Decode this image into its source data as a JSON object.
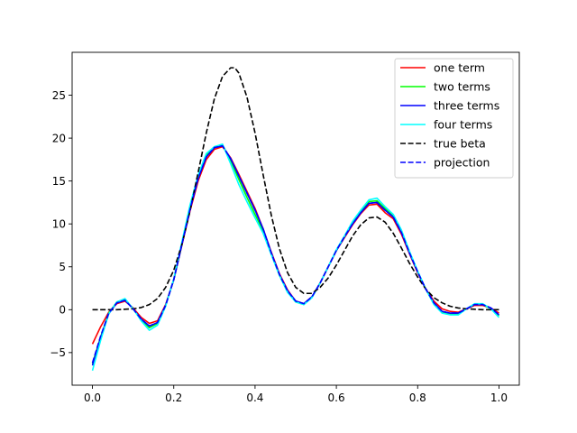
{
  "chart_data": {
    "type": "line",
    "title": "",
    "xlabel": "",
    "ylabel": "",
    "xlim": [
      -0.05,
      1.05
    ],
    "ylim": [
      -8.8,
      30.0
    ],
    "xticks": [
      0.0,
      0.2,
      0.4,
      0.6,
      0.8,
      1.0
    ],
    "xtick_labels": [
      "0.0",
      "0.2",
      "0.4",
      "0.6",
      "0.8",
      "1.0"
    ],
    "yticks": [
      -5,
      0,
      5,
      10,
      15,
      20,
      25
    ],
    "ytick_labels": [
      "−5",
      "0",
      "5",
      "10",
      "15",
      "20",
      "25"
    ],
    "grid": false,
    "legend_position": "top-right",
    "series": [
      {
        "name": "one term",
        "color": "#ff0000",
        "style": "solid",
        "x": [
          0.0,
          0.02,
          0.04,
          0.06,
          0.08,
          0.1,
          0.12,
          0.14,
          0.16,
          0.18,
          0.2,
          0.22,
          0.24,
          0.26,
          0.28,
          0.3,
          0.32,
          0.34,
          0.36,
          0.38,
          0.4,
          0.42,
          0.44,
          0.46,
          0.48,
          0.5,
          0.52,
          0.54,
          0.56,
          0.58,
          0.6,
          0.62,
          0.64,
          0.66,
          0.68,
          0.7,
          0.72,
          0.74,
          0.76,
          0.78,
          0.8,
          0.82,
          0.84,
          0.86,
          0.88,
          0.9,
          0.92,
          0.94,
          0.96,
          0.98,
          1.0
        ],
        "y": [
          -4.0,
          -2.0,
          -0.3,
          0.7,
          1.0,
          0.2,
          -0.9,
          -1.6,
          -1.3,
          0.6,
          3.5,
          7.5,
          11.5,
          15.0,
          17.5,
          18.7,
          19.0,
          17.7,
          15.8,
          13.8,
          11.8,
          9.4,
          6.7,
          4.2,
          2.3,
          1.0,
          0.7,
          1.5,
          3.1,
          5.0,
          6.9,
          8.4,
          9.9,
          11.2,
          12.2,
          12.3,
          11.3,
          10.6,
          8.8,
          6.5,
          4.3,
          2.4,
          1.0,
          0.1,
          -0.2,
          -0.3,
          0.1,
          0.5,
          0.5,
          0.2,
          -0.4
        ]
      },
      {
        "name": "two terms",
        "color": "#00ff00",
        "style": "solid",
        "x": [
          0.0,
          0.02,
          0.04,
          0.06,
          0.08,
          0.1,
          0.12,
          0.14,
          0.16,
          0.18,
          0.2,
          0.22,
          0.24,
          0.26,
          0.28,
          0.3,
          0.32,
          0.34,
          0.36,
          0.38,
          0.4,
          0.42,
          0.44,
          0.46,
          0.48,
          0.5,
          0.52,
          0.54,
          0.56,
          0.58,
          0.6,
          0.62,
          0.64,
          0.66,
          0.68,
          0.7,
          0.72,
          0.74,
          0.76,
          0.78,
          0.8,
          0.82,
          0.84,
          0.86,
          0.88,
          0.9,
          0.92,
          0.94,
          0.96,
          0.98,
          1.0
        ],
        "y": [
          -6.3,
          -3.2,
          -0.4,
          0.9,
          1.2,
          0.1,
          -1.2,
          -2.1,
          -1.6,
          0.5,
          3.5,
          7.6,
          11.8,
          15.5,
          18.0,
          19.0,
          19.2,
          17.4,
          15.2,
          13.1,
          11.1,
          9.2,
          6.5,
          4.0,
          2.1,
          0.9,
          0.6,
          1.5,
          3.1,
          5.0,
          6.9,
          8.5,
          10.1,
          11.4,
          12.6,
          12.7,
          11.8,
          10.9,
          9.1,
          6.7,
          4.4,
          2.4,
          0.7,
          -0.3,
          -0.5,
          -0.5,
          0.1,
          0.6,
          0.6,
          0.1,
          -0.7
        ]
      },
      {
        "name": "three terms",
        "color": "#0000ff",
        "style": "solid",
        "x": [
          0.0,
          0.02,
          0.04,
          0.06,
          0.08,
          0.1,
          0.12,
          0.14,
          0.16,
          0.18,
          0.2,
          0.22,
          0.24,
          0.26,
          0.28,
          0.3,
          0.32,
          0.34,
          0.36,
          0.38,
          0.4,
          0.42,
          0.44,
          0.46,
          0.48,
          0.5,
          0.52,
          0.54,
          0.56,
          0.58,
          0.6,
          0.62,
          0.64,
          0.66,
          0.68,
          0.7,
          0.72,
          0.74,
          0.76,
          0.78,
          0.8,
          0.82,
          0.84,
          0.86,
          0.88,
          0.9,
          0.92,
          0.94,
          0.96,
          0.98,
          1.0
        ],
        "y": [
          -6.5,
          -3.3,
          -0.5,
          0.8,
          1.1,
          0.1,
          -1.1,
          -1.9,
          -1.5,
          0.5,
          3.5,
          7.6,
          11.7,
          15.3,
          17.8,
          18.9,
          19.1,
          17.6,
          15.6,
          13.6,
          11.6,
          9.4,
          6.6,
          4.1,
          2.2,
          1.0,
          0.7,
          1.5,
          3.1,
          5.0,
          6.9,
          8.5,
          10.0,
          11.3,
          12.4,
          12.5,
          11.6,
          10.8,
          9.0,
          6.6,
          4.4,
          2.4,
          0.8,
          -0.2,
          -0.4,
          -0.4,
          0.1,
          0.6,
          0.6,
          0.2,
          -0.6
        ]
      },
      {
        "name": "four terms",
        "color": "#00ffff",
        "style": "solid",
        "x": [
          0.0,
          0.02,
          0.04,
          0.06,
          0.08,
          0.1,
          0.12,
          0.14,
          0.16,
          0.18,
          0.2,
          0.22,
          0.24,
          0.26,
          0.28,
          0.3,
          0.32,
          0.34,
          0.36,
          0.38,
          0.4,
          0.42,
          0.44,
          0.46,
          0.48,
          0.5,
          0.52,
          0.54,
          0.56,
          0.58,
          0.6,
          0.62,
          0.64,
          0.66,
          0.68,
          0.7,
          0.72,
          0.74,
          0.76,
          0.78,
          0.8,
          0.82,
          0.84,
          0.86,
          0.88,
          0.9,
          0.92,
          0.94,
          0.96,
          0.98,
          1.0
        ],
        "y": [
          -7.1,
          -3.6,
          -0.5,
          0.9,
          1.3,
          0.1,
          -1.3,
          -2.4,
          -1.8,
          0.4,
          3.6,
          7.9,
          12.2,
          15.7,
          18.2,
          19.0,
          19.3,
          17.0,
          14.6,
          12.6,
          10.7,
          8.9,
          6.4,
          4.0,
          2.0,
          0.9,
          0.6,
          1.4,
          3.1,
          5.0,
          7.0,
          8.6,
          10.3,
          11.6,
          12.8,
          13.0,
          12.0,
          11.1,
          9.3,
          6.8,
          4.5,
          2.4,
          0.6,
          -0.4,
          -0.6,
          -0.6,
          0.1,
          0.7,
          0.7,
          0.1,
          -0.9
        ]
      },
      {
        "name": "true beta",
        "color": "#000000",
        "style": "dashed",
        "x": [
          0.0,
          0.02,
          0.04,
          0.06,
          0.08,
          0.1,
          0.12,
          0.14,
          0.16,
          0.18,
          0.2,
          0.22,
          0.24,
          0.26,
          0.28,
          0.3,
          0.32,
          0.34,
          0.35,
          0.36,
          0.38,
          0.4,
          0.42,
          0.44,
          0.46,
          0.48,
          0.5,
          0.52,
          0.54,
          0.56,
          0.58,
          0.6,
          0.62,
          0.64,
          0.66,
          0.68,
          0.7,
          0.72,
          0.74,
          0.76,
          0.78,
          0.8,
          0.82,
          0.84,
          0.86,
          0.88,
          0.9,
          0.92,
          0.94,
          0.96,
          0.98,
          1.0
        ],
        "y": [
          0.0,
          0.0,
          0.0,
          0.0,
          0.05,
          0.1,
          0.25,
          0.6,
          1.3,
          2.6,
          4.6,
          7.6,
          11.5,
          16.0,
          20.6,
          24.6,
          27.2,
          28.2,
          28.2,
          27.6,
          24.8,
          20.6,
          15.7,
          11.0,
          7.1,
          4.3,
          2.6,
          1.9,
          1.9,
          2.6,
          3.7,
          5.2,
          6.9,
          8.6,
          9.9,
          10.7,
          10.8,
          10.2,
          8.9,
          7.2,
          5.4,
          3.8,
          2.4,
          1.4,
          0.8,
          0.4,
          0.2,
          0.1,
          0.05,
          0.0,
          0.0,
          0.0
        ]
      },
      {
        "name": "projection",
        "color": "#0000ff",
        "style": "dashed",
        "x": [
          0.0,
          0.02,
          0.04,
          0.06,
          0.08,
          0.1,
          0.12,
          0.14,
          0.16,
          0.18,
          0.2,
          0.22,
          0.24,
          0.26,
          0.28,
          0.3,
          0.32,
          0.34,
          0.36,
          0.38,
          0.4,
          0.42,
          0.44,
          0.46,
          0.48,
          0.5,
          0.52,
          0.54,
          0.56,
          0.58,
          0.6,
          0.62,
          0.64,
          0.66,
          0.68,
          0.7,
          0.72,
          0.74,
          0.76,
          0.78,
          0.8,
          0.82,
          0.84,
          0.86,
          0.88,
          0.9,
          0.92,
          0.94,
          0.96,
          0.98,
          1.0
        ],
        "y": [
          -6.2,
          -3.1,
          -0.4,
          0.8,
          1.1,
          0.1,
          -1.1,
          -1.9,
          -1.5,
          0.5,
          3.5,
          7.6,
          11.7,
          15.3,
          17.8,
          18.9,
          19.1,
          17.6,
          15.6,
          13.6,
          11.6,
          9.4,
          6.6,
          4.1,
          2.2,
          1.0,
          0.7,
          1.5,
          3.1,
          5.0,
          6.9,
          8.5,
          10.0,
          11.3,
          12.4,
          12.5,
          11.6,
          10.8,
          9.0,
          6.6,
          4.4,
          2.4,
          0.8,
          -0.2,
          -0.4,
          -0.4,
          0.1,
          0.6,
          0.6,
          0.2,
          -0.6
        ]
      }
    ]
  }
}
